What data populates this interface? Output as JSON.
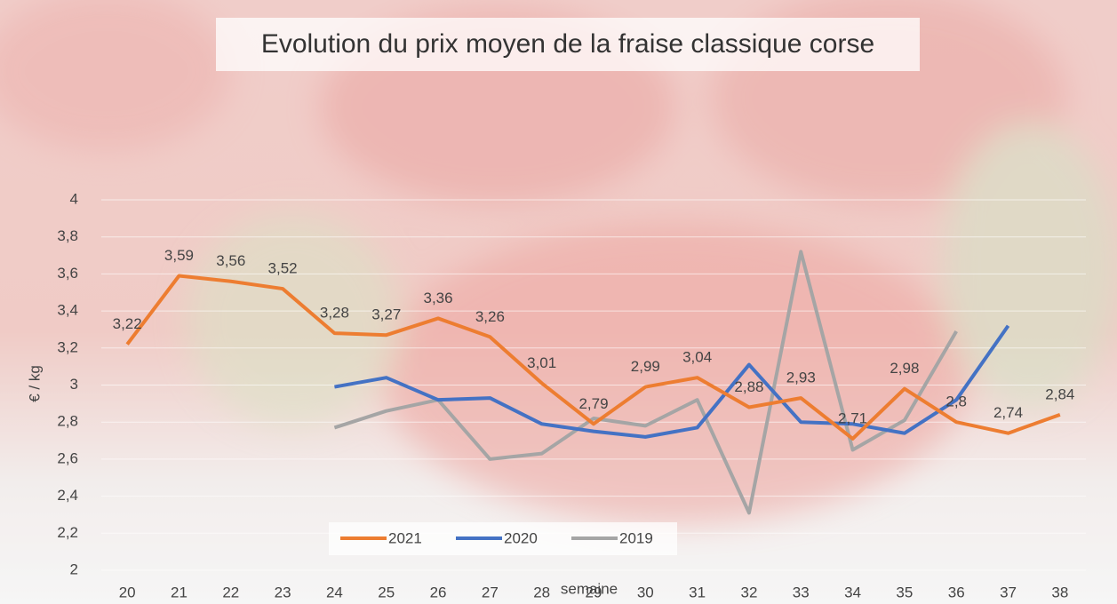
{
  "chart_data": {
    "type": "line",
    "title": "Evolution du prix moyen de la fraise classique corse",
    "x_label": "semaine",
    "y_label": "€ / kg",
    "categories": [
      "20",
      "21",
      "22",
      "23",
      "24",
      "25",
      "26",
      "27",
      "28",
      "29",
      "30",
      "31",
      "32",
      "33",
      "34",
      "35",
      "36",
      "37",
      "38"
    ],
    "series": [
      {
        "name": "2021",
        "color": "#ed7d31",
        "values": [
          3.22,
          3.59,
          3.56,
          3.52,
          3.28,
          3.27,
          3.36,
          3.26,
          3.01,
          2.79,
          2.99,
          3.04,
          2.88,
          2.93,
          2.71,
          2.98,
          2.8,
          2.74,
          2.84
        ],
        "value_labels": [
          "3,22",
          "3,59",
          "3,56",
          "3,52",
          "3,28",
          "3,27",
          "3,36",
          "3,26",
          "3,01",
          "2,79",
          "2,99",
          "3,04",
          "2,88",
          "2,93",
          "2,71",
          "2,98",
          "2,8",
          "2,74",
          "2,84"
        ]
      },
      {
        "name": "2020",
        "color": "#4472c4",
        "values": [
          null,
          null,
          null,
          null,
          2.99,
          3.04,
          2.92,
          2.93,
          2.79,
          2.75,
          2.72,
          2.77,
          3.11,
          2.8,
          2.79,
          2.74,
          2.92,
          3.32,
          null
        ]
      },
      {
        "name": "2019",
        "color": "#a5a5a5",
        "values": [
          null,
          null,
          null,
          null,
          2.77,
          2.86,
          2.92,
          2.6,
          2.63,
          2.82,
          2.78,
          2.92,
          2.31,
          3.72,
          2.65,
          2.81,
          3.29,
          null,
          null
        ]
      }
    ],
    "ylim": [
      2,
      4
    ],
    "yticks": [
      {
        "value": 2,
        "label": "2"
      },
      {
        "value": 2.2,
        "label": "2,2"
      },
      {
        "value": 2.4,
        "label": "2,4"
      },
      {
        "value": 2.6,
        "label": "2,6"
      },
      {
        "value": 2.8,
        "label": "2,8"
      },
      {
        "value": 3,
        "label": "3"
      },
      {
        "value": 3.2,
        "label": "3,2"
      },
      {
        "value": 3.4,
        "label": "3,4"
      },
      {
        "value": 3.6,
        "label": "3,6"
      },
      {
        "value": 3.8,
        "label": "3,8"
      },
      {
        "value": 4,
        "label": "4"
      }
    ],
    "grid": true,
    "legend": "bottom"
  }
}
